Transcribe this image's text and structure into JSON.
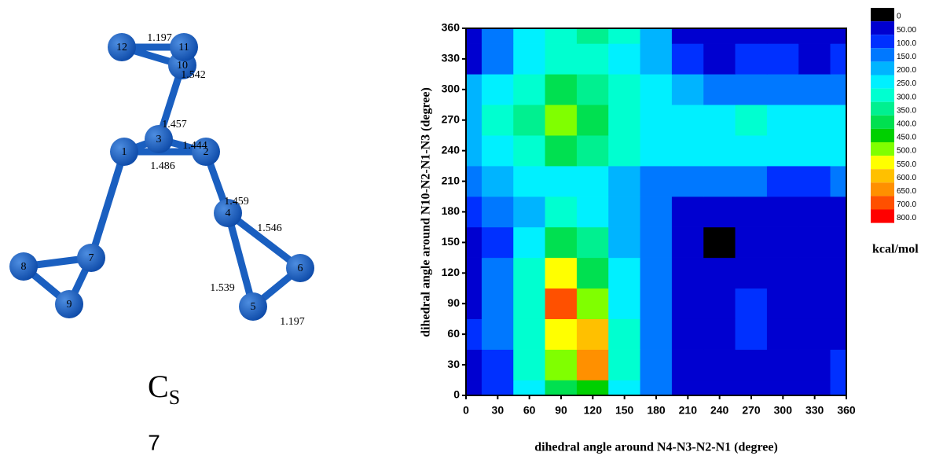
{
  "molecule": {
    "atoms": [
      "1",
      "2",
      "3",
      "4",
      "5",
      "6",
      "7",
      "8",
      "9",
      "10",
      "11",
      "12"
    ],
    "bond_lengths": [
      "1.197",
      "1.542",
      "1.457",
      "1.444",
      "1.486",
      "1.459",
      "1.546",
      "1.539",
      "1.197"
    ],
    "point_group": "C",
    "point_group_subscript": "S",
    "label": "7"
  },
  "chart_data": {
    "type": "contour",
    "xlabel": "dihedral angle around N4-N3-N2-N1  (degree)",
    "ylabel": "dihedral angle around N10-N2-N1-N3 (degree)",
    "x": [
      0,
      30,
      60,
      90,
      120,
      150,
      180,
      210,
      240,
      270,
      300,
      330,
      360
    ],
    "y": [
      0,
      30,
      60,
      90,
      120,
      150,
      180,
      210,
      240,
      270,
      300,
      330,
      360
    ],
    "z": [
      [
        70,
        120,
        250,
        420,
        470,
        250,
        150,
        60,
        60,
        80,
        80,
        80,
        110
      ],
      [
        80,
        140,
        300,
        520,
        650,
        320,
        160,
        80,
        60,
        60,
        80,
        90,
        110
      ],
      [
        100,
        160,
        330,
        560,
        600,
        300,
        160,
        90,
        70,
        120,
        80,
        70,
        90
      ],
      [
        90,
        160,
        330,
        720,
        520,
        280,
        150,
        90,
        70,
        120,
        80,
        60,
        70
      ],
      [
        80,
        150,
        300,
        550,
        440,
        260,
        150,
        80,
        60,
        70,
        60,
        50,
        80
      ],
      [
        70,
        130,
        260,
        400,
        350,
        240,
        170,
        70,
        40,
        60,
        70,
        50,
        60
      ],
      [
        100,
        170,
        240,
        300,
        270,
        220,
        160,
        90,
        80,
        80,
        80,
        70,
        80
      ],
      [
        160,
        200,
        250,
        260,
        260,
        230,
        190,
        160,
        150,
        150,
        140,
        140,
        150
      ],
      [
        230,
        260,
        320,
        420,
        390,
        310,
        270,
        260,
        250,
        260,
        260,
        260,
        250
      ],
      [
        240,
        300,
        380,
        510,
        420,
        320,
        270,
        260,
        260,
        330,
        280,
        260,
        260
      ],
      [
        200,
        270,
        340,
        400,
        360,
        310,
        260,
        210,
        180,
        180,
        160,
        160,
        160
      ],
      [
        80,
        160,
        260,
        300,
        320,
        280,
        220,
        120,
        90,
        100,
        100,
        90,
        100
      ],
      [
        60,
        150,
        250,
        310,
        370,
        300,
        200,
        90,
        70,
        70,
        80,
        70,
        70
      ]
    ],
    "xlim": [
      0,
      360
    ],
    "ylim": [
      0,
      360
    ],
    "xticks": [
      0,
      30,
      60,
      90,
      120,
      150,
      180,
      210,
      240,
      270,
      300,
      330,
      360
    ],
    "yticks": [
      0,
      30,
      60,
      90,
      120,
      150,
      180,
      210,
      240,
      270,
      300,
      330,
      360
    ],
    "levels": [
      0,
      {
        "value": 50,
        "label": "50.00"
      },
      {
        "value": 100,
        "label": "100.0"
      },
      {
        "value": 150,
        "label": "150.0"
      },
      {
        "value": 200,
        "label": "200.0"
      },
      {
        "value": 250,
        "label": "250.0"
      },
      {
        "value": 300,
        "label": "300.0"
      },
      {
        "value": 350,
        "label": "350.0"
      },
      {
        "value": 400,
        "label": "400.0"
      },
      {
        "value": 450,
        "label": "450.0"
      },
      {
        "value": 500,
        "label": "500.0"
      },
      {
        "value": 550,
        "label": "550.0"
      },
      {
        "value": 600,
        "label": "600.0"
      },
      {
        "value": 650,
        "label": "650.0"
      },
      {
        "value": 700,
        "label": "700.0"
      },
      {
        "value": 800,
        "label": "800.0"
      }
    ],
    "colors": [
      "#000000",
      "#0000d0",
      "#0030ff",
      "#0078ff",
      "#00b4ff",
      "#00f0ff",
      "#00ffd0",
      "#00f090",
      "#00e050",
      "#00d000",
      "#80ff00",
      "#ffff00",
      "#ffc000",
      "#ff9000",
      "#ff5000",
      "#ff0000"
    ],
    "colorbar_label": "kcal/mol"
  }
}
